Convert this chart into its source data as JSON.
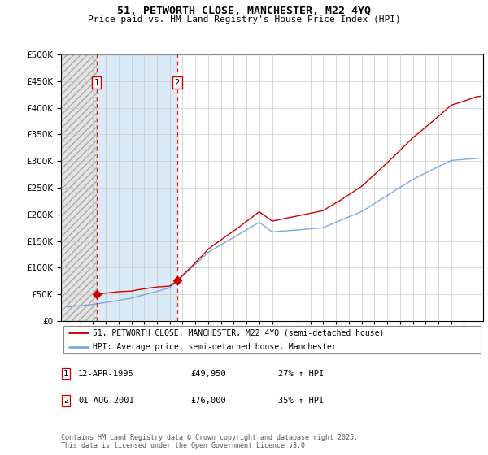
{
  "title": "51, PETWORTH CLOSE, MANCHESTER, M22 4YQ",
  "subtitle": "Price paid vs. HM Land Registry's House Price Index (HPI)",
  "legend_line1": "51, PETWORTH CLOSE, MANCHESTER, M22 4YQ (semi-detached house)",
  "legend_line2": "HPI: Average price, semi-detached house, Manchester",
  "footnote": "Contains HM Land Registry data © Crown copyright and database right 2025.\nThis data is licensed under the Open Government Licence v3.0.",
  "sale1_label": "1",
  "sale1_date": "12-APR-1995",
  "sale1_price": "£49,950",
  "sale1_hpi": "27% ↑ HPI",
  "sale2_label": "2",
  "sale2_date": "01-AUG-2001",
  "sale2_price": "£76,000",
  "sale2_hpi": "35% ↑ HPI",
  "sale1_x": 1995.28,
  "sale2_x": 2001.58,
  "sale1_price_val": 49950,
  "sale2_price_val": 76000,
  "line_color_price": "#cc0000",
  "line_color_hpi": "#7aaadd",
  "vline_color": "#cc0000",
  "ylim": [
    0,
    500000
  ],
  "xlim_start": 1992.5,
  "xlim_end": 2025.5
}
